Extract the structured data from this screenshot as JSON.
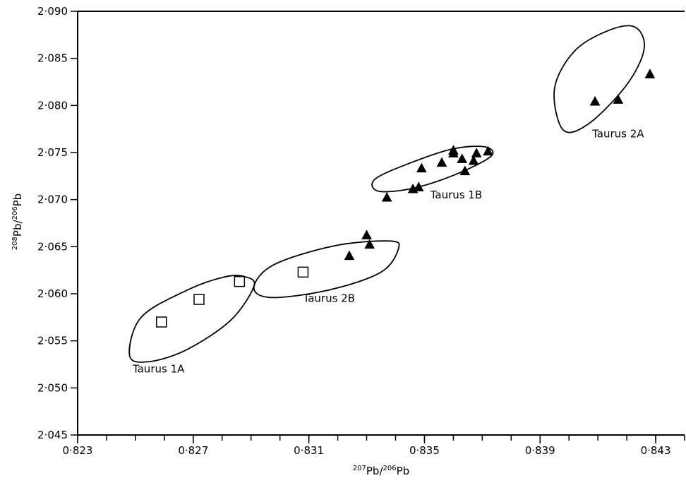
{
  "chart_data": {
    "type": "scatter",
    "title": "",
    "xlabel": {
      "sup": "207",
      "base": "Pb/",
      "sup2": "206",
      "base2": "Pb"
    },
    "ylabel": {
      "sup": "208",
      "base": "Pb/",
      "sup2": "206",
      "base2": "Pb"
    },
    "xlim": [
      0.823,
      0.844
    ],
    "ylim": [
      2.045,
      2.09
    ],
    "x_ticks": [
      {
        "value": 0.823,
        "label": "0·823"
      },
      {
        "value": 0.827,
        "label": "0·827"
      },
      {
        "value": 0.831,
        "label": "0·831"
      },
      {
        "value": 0.835,
        "label": "0·835"
      },
      {
        "value": 0.839,
        "label": "0·839"
      },
      {
        "value": 0.843,
        "label": "0·843"
      }
    ],
    "x_minor_step": 0.001,
    "y_ticks": [
      {
        "value": 2.045,
        "label": "2·045"
      },
      {
        "value": 2.05,
        "label": "2·050"
      },
      {
        "value": 2.055,
        "label": "2·055"
      },
      {
        "value": 2.06,
        "label": "2·060"
      },
      {
        "value": 2.065,
        "label": "2·065"
      },
      {
        "value": 2.07,
        "label": "2·070"
      },
      {
        "value": 2.075,
        "label": "2·075"
      },
      {
        "value": 2.08,
        "label": "2·080"
      },
      {
        "value": 2.085,
        "label": "2·085"
      },
      {
        "value": 2.09,
        "label": "2·090"
      }
    ],
    "grid": false,
    "series": [
      {
        "marker": "open-square",
        "points": [
          [
            0.8259,
            2.057
          ],
          [
            0.8272,
            2.0594
          ],
          [
            0.8286,
            2.0613
          ],
          [
            0.8308,
            2.0623
          ]
        ]
      },
      {
        "marker": "filled-triangle",
        "points": [
          [
            0.8324,
            2.064
          ],
          [
            0.833,
            2.0662
          ],
          [
            0.8331,
            2.0652
          ],
          [
            0.8337,
            2.0702
          ],
          [
            0.8346,
            2.0711
          ],
          [
            0.8348,
            2.0713
          ],
          [
            0.8349,
            2.0733
          ],
          [
            0.8356,
            2.0739
          ],
          [
            0.836,
            2.0749
          ],
          [
            0.836,
            2.0752
          ],
          [
            0.8363,
            2.0743
          ],
          [
            0.8364,
            2.073
          ],
          [
            0.8367,
            2.0741
          ],
          [
            0.8368,
            2.0749
          ],
          [
            0.8372,
            2.0751
          ],
          [
            0.8409,
            2.0804
          ],
          [
            0.8417,
            2.0806
          ],
          [
            0.8428,
            2.0833
          ]
        ]
      }
    ],
    "ellipses": [
      {
        "label": "Taurus 1A",
        "polygon": [
          [
            0.8288,
            2.0618
          ],
          [
            0.8281,
            2.0618
          ],
          [
            0.8268,
            2.0604
          ],
          [
            0.8252,
            2.0575
          ],
          [
            0.8248,
            2.0534
          ],
          [
            0.8255,
            2.0528
          ],
          [
            0.8268,
            2.0541
          ],
          [
            0.8283,
            2.0572
          ],
          [
            0.8291,
            2.0608
          ]
        ],
        "label_at": [
          0.8258,
          2.052
        ]
      },
      {
        "label": "Taurus 2B",
        "polygon": [
          [
            0.8338,
            2.0656
          ],
          [
            0.8319,
            2.0651
          ],
          [
            0.8298,
            2.0631
          ],
          [
            0.8291,
            2.0607
          ],
          [
            0.8297,
            2.0596
          ],
          [
            0.8317,
            2.0604
          ],
          [
            0.8335,
            2.0623
          ],
          [
            0.8341,
            2.0648
          ]
        ],
        "label_at": [
          0.8317,
          2.0595
        ]
      },
      {
        "label": "Taurus 1B",
        "polygon": [
          [
            0.8371,
            2.0756
          ],
          [
            0.836,
            2.0754
          ],
          [
            0.8346,
            2.074
          ],
          [
            0.8333,
            2.0722
          ],
          [
            0.8334,
            2.0709
          ],
          [
            0.8346,
            2.0712
          ],
          [
            0.8361,
            2.0727
          ],
          [
            0.8373,
            2.0746
          ]
        ],
        "label_at": [
          0.8361,
          2.0705
        ]
      },
      {
        "label": "Taurus 2A",
        "polygon": [
          [
            0.8423,
            2.0883
          ],
          [
            0.8414,
            2.088
          ],
          [
            0.8402,
            2.0858
          ],
          [
            0.8395,
            2.0818
          ],
          [
            0.8398,
            2.0774
          ],
          [
            0.8407,
            2.0781
          ],
          [
            0.842,
            2.0822
          ],
          [
            0.8426,
            2.086
          ]
        ],
        "label_at": [
          0.8417,
          2.077
        ]
      }
    ]
  }
}
